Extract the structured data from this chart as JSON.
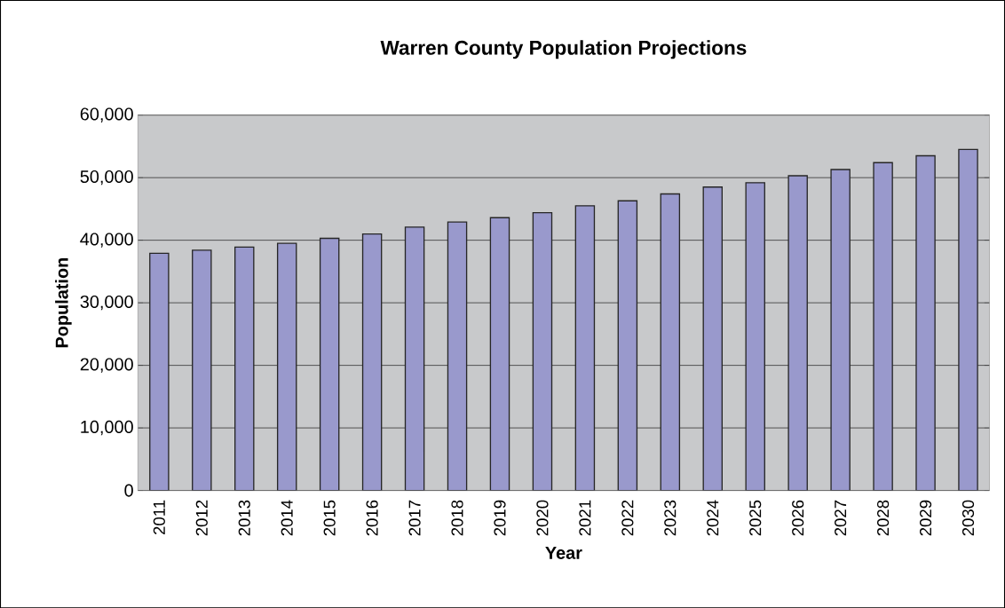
{
  "chart_data": {
    "type": "bar",
    "title": "Warren County Population Projections",
    "xlabel": "Year",
    "ylabel": "Population",
    "categories": [
      "2011",
      "2012",
      "2013",
      "2014",
      "2015",
      "2016",
      "2017",
      "2018",
      "2019",
      "2020",
      "2021",
      "2022",
      "2023",
      "2024",
      "2025",
      "2026",
      "2027",
      "2028",
      "2029",
      "2030"
    ],
    "values": [
      37900,
      38400,
      38900,
      39500,
      40300,
      41000,
      42100,
      42900,
      43600,
      44400,
      45500,
      46300,
      47400,
      48500,
      49200,
      50300,
      51300,
      52400,
      53500,
      54500
    ],
    "color": "#9999cc",
    "ylim": [
      0,
      60000
    ],
    "yticks": [
      {
        "value": 0,
        "label": "0"
      },
      {
        "value": 10000,
        "label": "10,000"
      },
      {
        "value": 20000,
        "label": "20,000"
      },
      {
        "value": 30000,
        "label": "30,000"
      },
      {
        "value": 40000,
        "label": "40,000"
      },
      {
        "value": 50000,
        "label": "50,000"
      },
      {
        "value": 60000,
        "label": "60,000"
      }
    ],
    "grid": "y"
  }
}
